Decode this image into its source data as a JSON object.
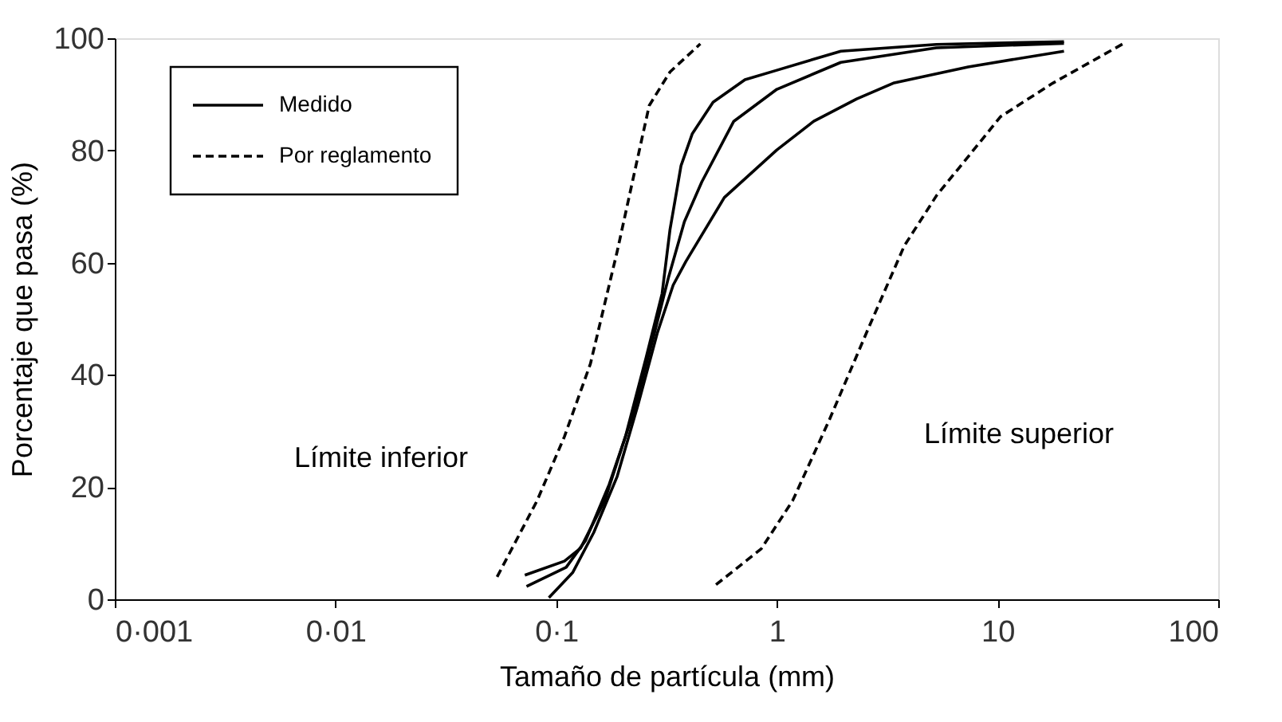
{
  "chart_data": {
    "type": "line",
    "xlabel": "Tamaño de partícula (mm)",
    "ylabel": "Porcentaje que pasa (%)",
    "log": "x",
    "grid": false,
    "legend": "top left",
    "xlim": [
      0.001,
      100
    ],
    "ylim": [
      0,
      100
    ],
    "xticks": [
      {
        "value": 0.001,
        "label": "0·001"
      },
      {
        "value": 0.01,
        "label": "0·01"
      },
      {
        "value": 0.1,
        "label": "0·1"
      },
      1,
      10,
      100
    ],
    "yticks": [
      0,
      20,
      40,
      60,
      80,
      100
    ],
    "series": [
      {
        "name": "Medido",
        "color": "#000000",
        "line_style": "solid",
        "x": [
          0.0721,
          0.109,
          0.129,
          0.166,
          0.206,
          0.256,
          0.302,
          0.328,
          0.368,
          0.414,
          0.514,
          0.717,
          1,
          1.95,
          5.28,
          20
        ],
        "values": [
          4.3,
          6.8,
          9.1,
          17.6,
          29,
          43.2,
          54.5,
          65.9,
          77.3,
          83,
          88.6,
          92.6,
          94.3,
          97.7,
          98.9,
          99.4
        ]
      },
      {
        "color": "#000000",
        "line_style": "solid",
        "x": [
          0.0734,
          0.111,
          0.136,
          0.174,
          0.224,
          0.273,
          0.323,
          0.381,
          0.457,
          0.638,
          1,
          1.95,
          5.28,
          20
        ],
        "values": [
          2.3,
          5.7,
          10.5,
          20.5,
          33.2,
          46,
          57.4,
          67.3,
          74.4,
          85.2,
          90.9,
          95.7,
          98.3,
          99.1
        ]
      },
      {
        "color": "#000000",
        "line_style": "solid",
        "x": [
          0.0927,
          0.119,
          0.148,
          0.189,
          0.235,
          0.287,
          0.339,
          0.387,
          0.578,
          1,
          1.47,
          2.3,
          3.37,
          7.36,
          20
        ],
        "values": [
          0.3,
          4.8,
          11.9,
          21.9,
          34.7,
          47.4,
          56,
          60.2,
          71.6,
          80.1,
          85.2,
          89.2,
          92,
          94.9,
          97.7
        ]
      },
      {
        "name": "Por reglamento",
        "color": "#000000",
        "line_style": "dashed",
        "x": [
          0.054,
          0.082,
          0.109,
          0.143,
          0.189,
          0.235,
          0.264,
          0.328,
          0.45
        ],
        "values": [
          4,
          17.6,
          29,
          42,
          62,
          79,
          88,
          94,
          99
        ]
      },
      {
        "color": "#000000",
        "line_style": "dashed",
        "x": [
          0.53,
          0.85,
          1.18,
          1.73,
          2.58,
          3.78,
          5.3,
          7.4,
          10.3,
          17.8,
          37
        ],
        "values": [
          2.6,
          9,
          17.6,
          32,
          48,
          63,
          72,
          79,
          86,
          92,
          99
        ]
      }
    ],
    "annotations": [
      "Límite inferior",
      "Límite superior"
    ]
  }
}
